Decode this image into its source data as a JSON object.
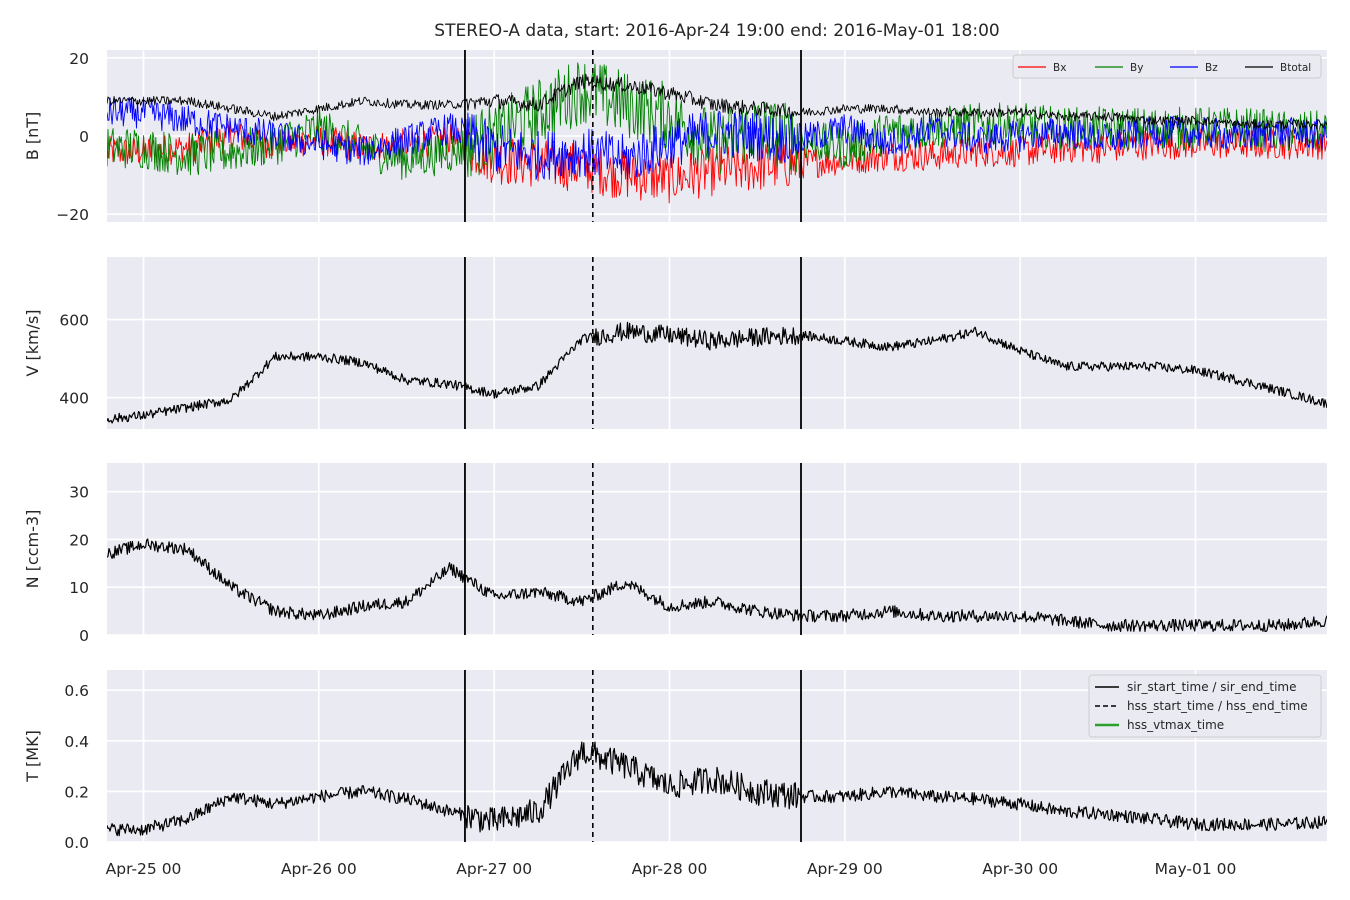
{
  "figure": {
    "title": "STEREO-A data, start: 2016-Apr-24 19:00  end: 2016-May-01 18:00",
    "background": "#eaeaf2",
    "grid_color": "#ffffff"
  },
  "chart_data": [
    {
      "type": "line",
      "id": "B",
      "ylabel": "B [nT]",
      "xlim": [
        "2016-04-24 19:00",
        "2016-05-01 18:00"
      ],
      "ylim": [
        -22,
        22
      ],
      "yticks": [
        -20,
        0,
        20
      ],
      "ytick_labels": [
        "−20",
        "0",
        "20"
      ],
      "grid": true,
      "legend": {
        "placement": "top-right",
        "entries": [
          "Bx",
          "By",
          "Bz",
          "Btotal"
        ]
      },
      "x": [
        "2016-04-25 00:00",
        "2016-04-25 06:00",
        "2016-04-25 12:00",
        "2016-04-25 18:00",
        "2016-04-26 00:00",
        "2016-04-26 06:00",
        "2016-04-26 12:00",
        "2016-04-26 18:00",
        "2016-04-27 00:00",
        "2016-04-27 06:00",
        "2016-04-27 12:00",
        "2016-04-27 18:00",
        "2016-04-28 00:00",
        "2016-04-28 06:00",
        "2016-04-28 12:00",
        "2016-04-28 18:00",
        "2016-04-29 00:00",
        "2016-04-29 06:00",
        "2016-04-29 12:00",
        "2016-04-29 18:00",
        "2016-04-30 00:00",
        "2016-04-30 06:00",
        "2016-04-30 12:00",
        "2016-04-30 18:00",
        "2016-05-01 00:00",
        "2016-05-01 06:00",
        "2016-05-01 12:00",
        "2016-05-01 18:00"
      ],
      "series": [
        {
          "name": "Bx",
          "color": "#ff0000",
          "values": [
            -4,
            -3,
            0,
            -2,
            -1,
            -3,
            -2,
            -1,
            -6,
            -7,
            -8,
            -10,
            -11,
            -9,
            -8,
            -7,
            -6,
            -5,
            -5,
            -4,
            -4,
            -3,
            -3,
            -2,
            -2,
            -2,
            -2,
            -2
          ]
        },
        {
          "name": "By",
          "color": "#008000",
          "values": [
            -3,
            -5,
            -4,
            -2,
            2,
            -3,
            -6,
            -4,
            0,
            6,
            12,
            8,
            5,
            -2,
            2,
            -1,
            -3,
            1,
            2,
            3,
            3,
            2,
            2,
            2,
            2,
            2,
            1,
            1
          ]
        },
        {
          "name": "Bz",
          "color": "#0000ff",
          "values": [
            6,
            4,
            2,
            0,
            -2,
            -4,
            -1,
            2,
            -3,
            -5,
            -4,
            -6,
            -2,
            1,
            0,
            -1,
            2,
            -2,
            2,
            -1,
            0,
            1,
            -1,
            1,
            1,
            0,
            1,
            0
          ]
        },
        {
          "name": "Btotal",
          "color": "#000000",
          "values": [
            9,
            9,
            7,
            5,
            7,
            9,
            8,
            8,
            9,
            8,
            14,
            13,
            11,
            8,
            7,
            6,
            7,
            7,
            6,
            6,
            6,
            5,
            5,
            4,
            4,
            3,
            3,
            3
          ]
        }
      ]
    },
    {
      "type": "line",
      "id": "V",
      "ylabel": "V [km/s]",
      "xlim": [
        "2016-04-24 19:00",
        "2016-05-01 18:00"
      ],
      "ylim": [
        320,
        760
      ],
      "yticks": [
        400,
        600
      ],
      "ytick_labels": [
        "400",
        "600"
      ],
      "grid": true,
      "x": [
        "2016-04-24 19:00",
        "2016-04-25 00:00",
        "2016-04-25 06:00",
        "2016-04-25 12:00",
        "2016-04-25 18:00",
        "2016-04-26 00:00",
        "2016-04-26 06:00",
        "2016-04-26 12:00",
        "2016-04-26 18:00",
        "2016-04-27 00:00",
        "2016-04-27 06:00",
        "2016-04-27 12:00",
        "2016-04-27 18:00",
        "2016-04-28 00:00",
        "2016-04-28 06:00",
        "2016-04-28 12:00",
        "2016-04-28 18:00",
        "2016-04-29 00:00",
        "2016-04-29 06:00",
        "2016-04-29 12:00",
        "2016-04-29 18:00",
        "2016-04-30 00:00",
        "2016-04-30 06:00",
        "2016-04-30 12:00",
        "2016-04-30 18:00",
        "2016-05-01 00:00",
        "2016-05-01 06:00",
        "2016-05-01 12:00",
        "2016-05-01 18:00"
      ],
      "series": [
        {
          "name": "V",
          "color": "#000000",
          "values": [
            345,
            355,
            375,
            395,
            505,
            505,
            490,
            445,
            435,
            410,
            430,
            550,
            570,
            560,
            545,
            555,
            560,
            545,
            530,
            545,
            570,
            520,
            480,
            480,
            480,
            470,
            445,
            415,
            385
          ]
        }
      ]
    },
    {
      "type": "line",
      "id": "N",
      "ylabel": "N [ccm-3]",
      "xlim": [
        "2016-04-24 19:00",
        "2016-05-01 18:00"
      ],
      "ylim": [
        0,
        36
      ],
      "yticks": [
        0,
        10,
        20,
        30
      ],
      "ytick_labels": [
        "0",
        "10",
        "20",
        "30"
      ],
      "grid": true,
      "x": [
        "2016-04-24 19:00",
        "2016-04-25 00:00",
        "2016-04-25 06:00",
        "2016-04-25 12:00",
        "2016-04-25 18:00",
        "2016-04-26 00:00",
        "2016-04-26 06:00",
        "2016-04-26 12:00",
        "2016-04-26 18:00",
        "2016-04-27 00:00",
        "2016-04-27 06:00",
        "2016-04-27 12:00",
        "2016-04-27 18:00",
        "2016-04-28 00:00",
        "2016-04-28 06:00",
        "2016-04-28 12:00",
        "2016-04-28 18:00",
        "2016-04-29 00:00",
        "2016-04-29 06:00",
        "2016-04-29 12:00",
        "2016-04-29 18:00",
        "2016-04-30 00:00",
        "2016-04-30 06:00",
        "2016-04-30 12:00",
        "2016-04-30 18:00",
        "2016-05-01 00:00",
        "2016-05-01 06:00",
        "2016-05-01 12:00",
        "2016-05-01 18:00"
      ],
      "series": [
        {
          "name": "N",
          "color": "#000000",
          "values": [
            17,
            19,
            18,
            10,
            5,
            4,
            6,
            7,
            14,
            8,
            9,
            7,
            11,
            6,
            7,
            5,
            4,
            4,
            5,
            4,
            4,
            4,
            3,
            2,
            2,
            2,
            2,
            2,
            3
          ]
        }
      ]
    },
    {
      "type": "line",
      "id": "T",
      "ylabel": "T [MK]",
      "xlim": [
        "2016-04-24 19:00",
        "2016-05-01 18:00"
      ],
      "ylim": [
        0,
        0.68
      ],
      "yticks": [
        0,
        0.2,
        0.4,
        0.6
      ],
      "ytick_labels": [
        "0.0",
        "0.2",
        "0.4",
        "0.6"
      ],
      "grid": true,
      "legend": {
        "placement": "top-right",
        "entries": [
          "sir_start_time / sir_end_time",
          "hss_start_time / hss_end_time",
          "hss_vtmax_time"
        ]
      },
      "x": [
        "2016-04-24 19:00",
        "2016-04-25 00:00",
        "2016-04-25 06:00",
        "2016-04-25 12:00",
        "2016-04-25 18:00",
        "2016-04-26 00:00",
        "2016-04-26 06:00",
        "2016-04-26 12:00",
        "2016-04-26 18:00",
        "2016-04-27 00:00",
        "2016-04-27 06:00",
        "2016-04-27 12:00",
        "2016-04-27 18:00",
        "2016-04-28 00:00",
        "2016-04-28 06:00",
        "2016-04-28 12:00",
        "2016-04-28 18:00",
        "2016-04-29 00:00",
        "2016-04-29 06:00",
        "2016-04-29 12:00",
        "2016-04-29 18:00",
        "2016-04-30 00:00",
        "2016-04-30 06:00",
        "2016-04-30 12:00",
        "2016-04-30 18:00",
        "2016-05-01 00:00",
        "2016-05-01 06:00",
        "2016-05-01 12:00",
        "2016-05-01 18:00"
      ],
      "series": [
        {
          "name": "T",
          "color": "#000000",
          "values": [
            0.05,
            0.05,
            0.09,
            0.18,
            0.15,
            0.18,
            0.2,
            0.17,
            0.12,
            0.08,
            0.12,
            0.36,
            0.3,
            0.22,
            0.25,
            0.2,
            0.18,
            0.18,
            0.2,
            0.18,
            0.17,
            0.15,
            0.12,
            0.11,
            0.09,
            0.07,
            0.07,
            0.07,
            0.08
          ]
        }
      ]
    }
  ],
  "shared_x": {
    "ticks": [
      "2016-04-25 00:00",
      "2016-04-26 00:00",
      "2016-04-27 00:00",
      "2016-04-28 00:00",
      "2016-04-29 00:00",
      "2016-04-30 00:00",
      "2016-05-01 00:00"
    ],
    "tick_labels": [
      "Apr-25 00",
      "Apr-26 00",
      "Apr-27 00",
      "Apr-28 00",
      "Apr-29 00",
      "Apr-30 00",
      "May-01 00"
    ]
  },
  "events": {
    "sir_start_time": "2016-04-26 20:00",
    "sir_end_time": "2016-04-28 18:00",
    "hss_start_time": "2016-04-27 13:30",
    "sir_color": "#000000",
    "hss_color": "#000000",
    "vtmax_color": "#2ca02c"
  }
}
